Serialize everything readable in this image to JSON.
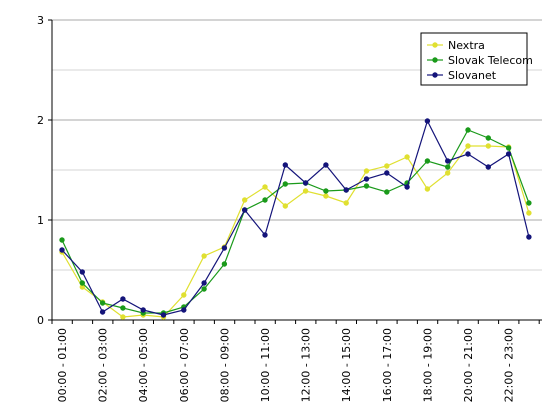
{
  "chart_data": {
    "type": "line",
    "title": "",
    "xlabel": "",
    "ylabel": "",
    "ylim": [
      0,
      3
    ],
    "yticks": [
      "0",
      "1",
      "2",
      "3"
    ],
    "grid": "horizontal",
    "legend_position": "top-right",
    "categories": [
      "00:00 - 01:00",
      "01:00 - 02:00",
      "02:00 - 03:00",
      "03:00 - 04:00",
      "04:00 - 05:00",
      "05:00 - 06:00",
      "06:00 - 07:00",
      "07:00 - 08:00",
      "08:00 - 09:00",
      "09:00 - 10:00",
      "10:00 - 11:00",
      "11:00 - 12:00",
      "12:00 - 13:00",
      "13:00 - 14:00",
      "14:00 - 15:00",
      "15:00 - 16:00",
      "16:00 - 17:00",
      "17:00 - 18:00",
      "18:00 - 19:00",
      "19:00 - 20:00",
      "20:00 - 21:00",
      "21:00 - 22:00",
      "22:00 - 23:00",
      "23:00 - 00:00"
    ],
    "visible_tick_labels": [
      "00:00 - 01:00",
      "02:00 - 03:00",
      "04:00 - 05:00",
      "06:00 - 07:00",
      "08:00 - 09:00",
      "10:00 - 11:00",
      "12:00 - 13:00",
      "14:00 - 15:00",
      "16:00 - 17:00",
      "18:00 - 19:00",
      "20:00 - 21:00",
      "22:00 - 23:00"
    ],
    "series": [
      {
        "name": "Nextra",
        "color": "#e0e030",
        "values": [
          0.68,
          0.33,
          0.18,
          0.03,
          0.05,
          0.03,
          0.25,
          0.64,
          0.73,
          1.2,
          1.33,
          1.14,
          1.29,
          1.24,
          1.17,
          1.49,
          1.54,
          1.63,
          1.31,
          1.47,
          1.74,
          1.74,
          1.73,
          1.07
        ]
      },
      {
        "name": "Slovak Telecom",
        "color": "#1a9a1a",
        "values": [
          0.8,
          0.37,
          0.17,
          0.12,
          0.07,
          0.07,
          0.13,
          0.31,
          0.56,
          1.1,
          1.2,
          1.36,
          1.37,
          1.29,
          1.3,
          1.34,
          1.28,
          1.37,
          1.59,
          1.53,
          1.9,
          1.82,
          1.72,
          1.17
        ]
      },
      {
        "name": "Slovanet",
        "color": "#14147a",
        "values": [
          0.7,
          0.48,
          0.08,
          0.21,
          0.1,
          0.05,
          0.1,
          0.37,
          0.72,
          1.1,
          0.85,
          1.55,
          1.37,
          1.55,
          1.3,
          1.41,
          1.47,
          1.33,
          1.99,
          1.59,
          1.66,
          1.53,
          1.66,
          0.83
        ]
      }
    ]
  }
}
